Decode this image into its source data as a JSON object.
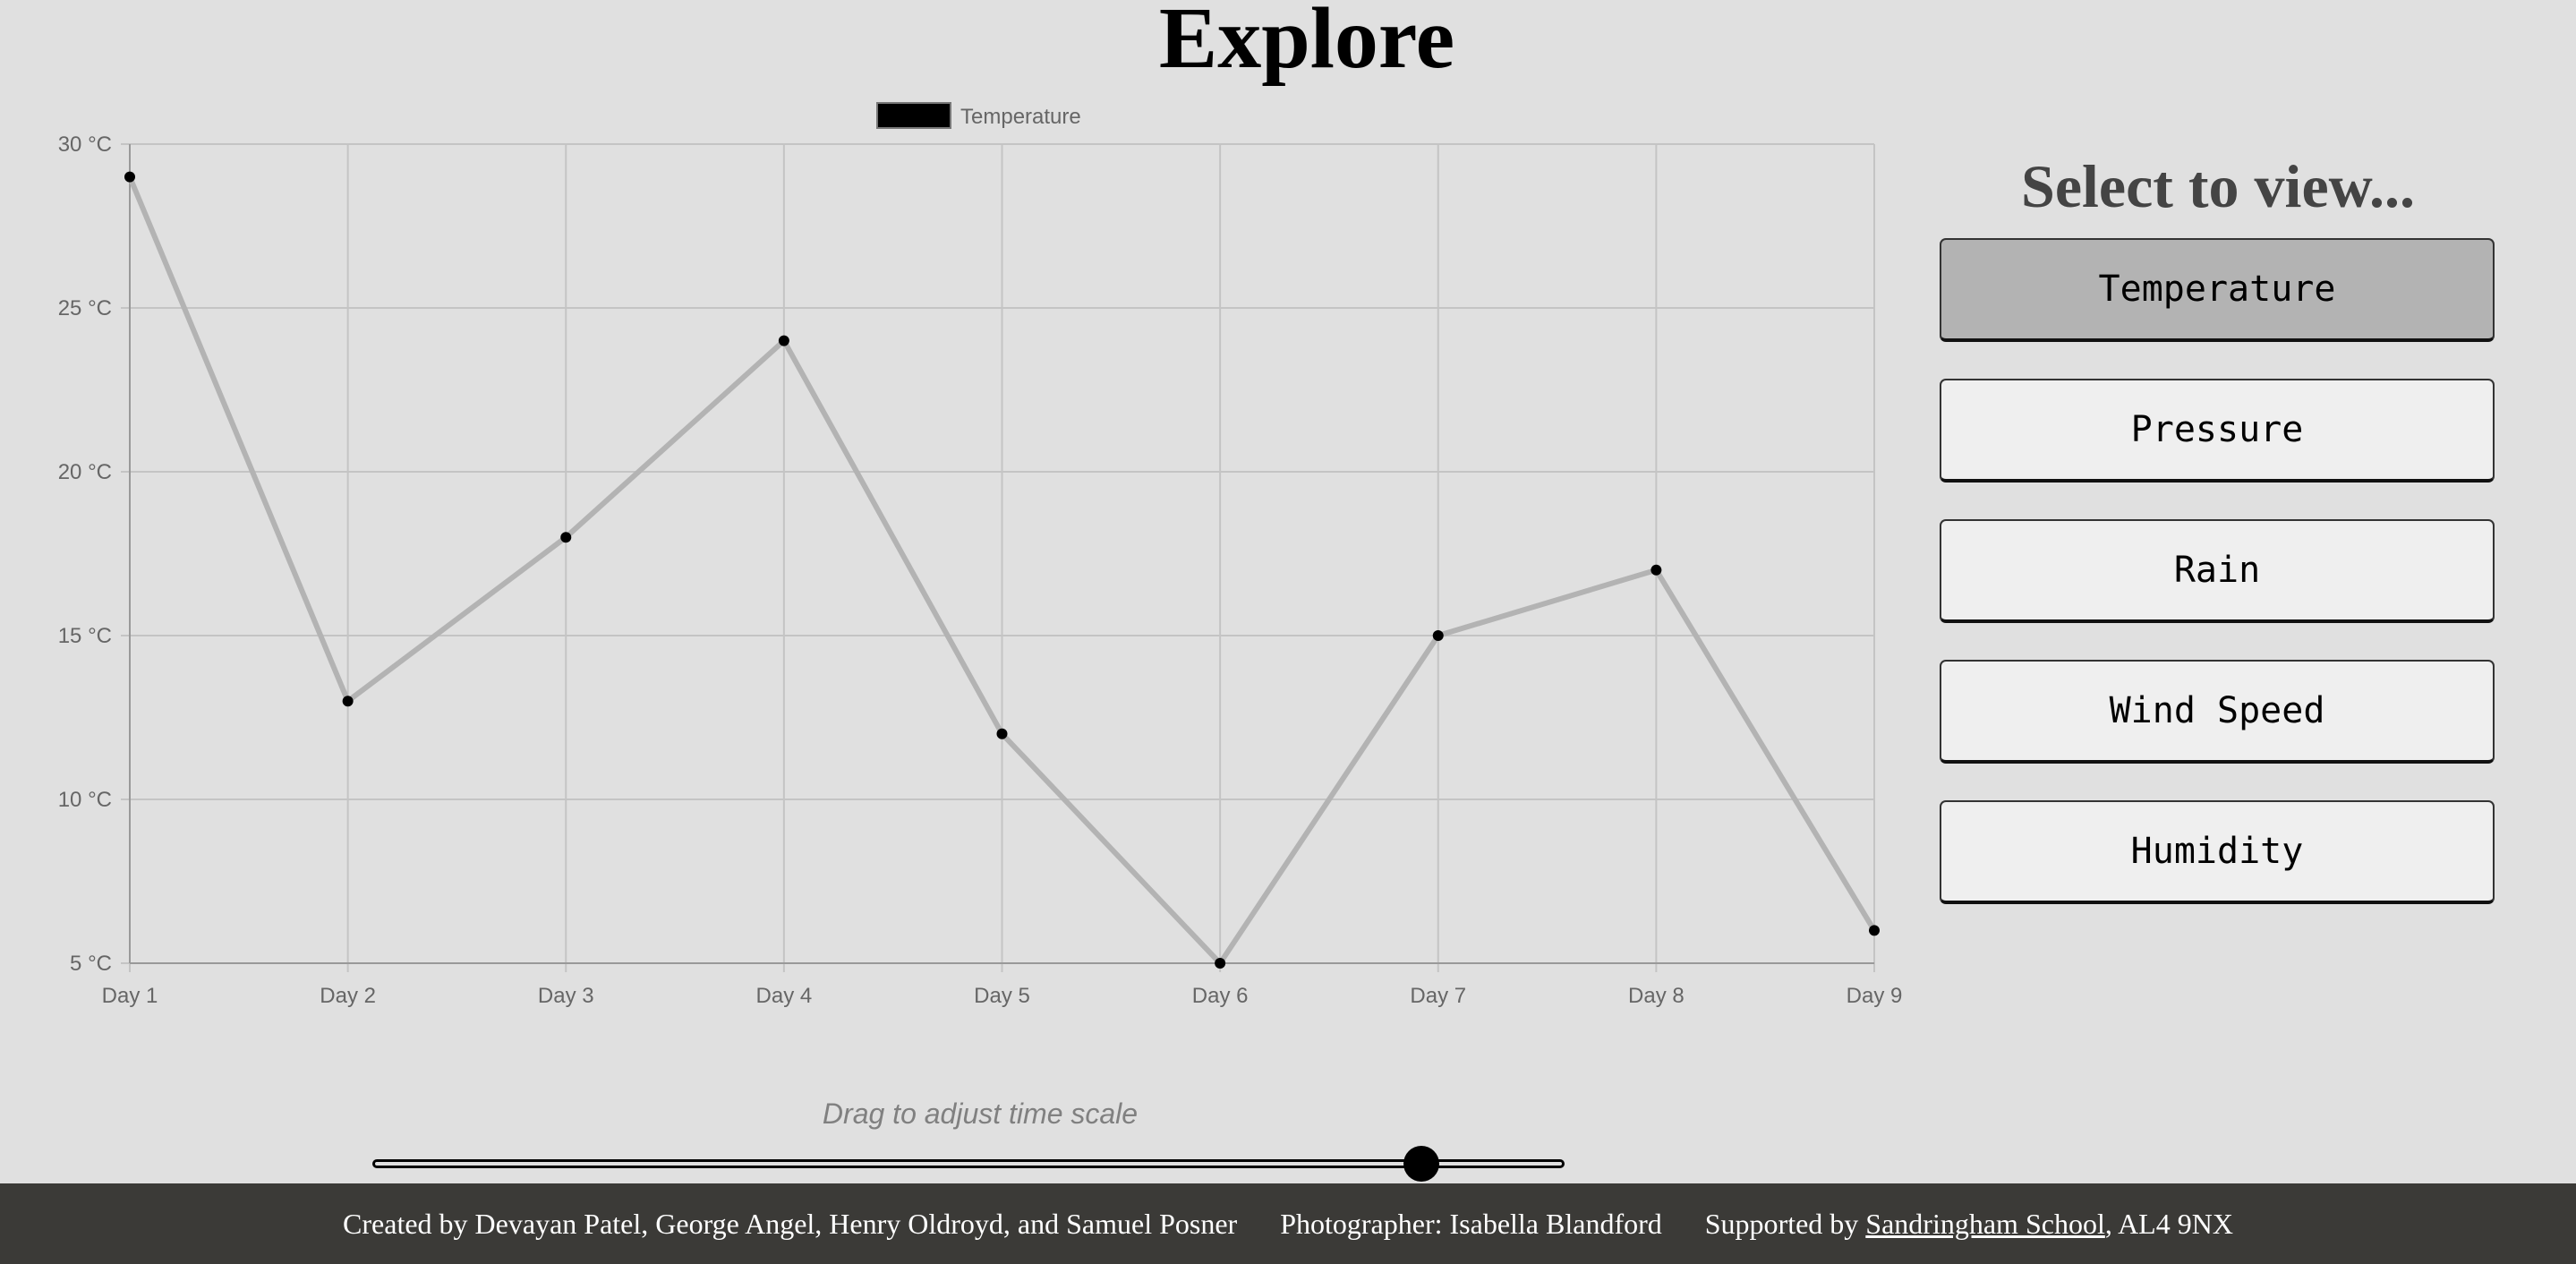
{
  "page": {
    "title": "Explore"
  },
  "side_panel": {
    "heading": "Select to view...",
    "buttons": [
      {
        "label": "Temperature",
        "active": true
      },
      {
        "label": "Pressure",
        "active": false
      },
      {
        "label": "Rain",
        "active": false
      },
      {
        "label": "Wind Speed",
        "active": false
      },
      {
        "label": "Humidity",
        "active": false
      }
    ]
  },
  "slider": {
    "caption": "Drag to adjust time scale",
    "value_fraction": 0.88
  },
  "footer": {
    "credits": "Created by Devayan Patel, George Angel, Henry Oldroyd, and Samuel Posner",
    "photographer": "Photographer: Isabella Blandford",
    "supported_prefix": "Supported by",
    "school_link": "Sandringham School",
    "postcode_suffix": ", AL4 9NX"
  },
  "colors": {
    "line": "#b3b3b3",
    "points": "#000000",
    "legend_box": "#000000",
    "active_button": "#b3b3b3",
    "button": "#efefef",
    "footer_bg": "#3b3a37"
  },
  "chart_data": {
    "type": "line",
    "categories": [
      "Day 1",
      "Day 2",
      "Day 3",
      "Day 4",
      "Day 5",
      "Day 6",
      "Day 7",
      "Day 8",
      "Day 9"
    ],
    "series": [
      {
        "name": "Temperature",
        "values": [
          29,
          13,
          18,
          24,
          12,
          5,
          15,
          17,
          6
        ]
      }
    ],
    "y_ticks": [
      "5 °C",
      "10 °C",
      "15 °C",
      "20 °C",
      "25 °C",
      "30 °C"
    ],
    "ylim": [
      5,
      30
    ],
    "y_unit": "°C",
    "grid": true,
    "legend": "top-center"
  }
}
